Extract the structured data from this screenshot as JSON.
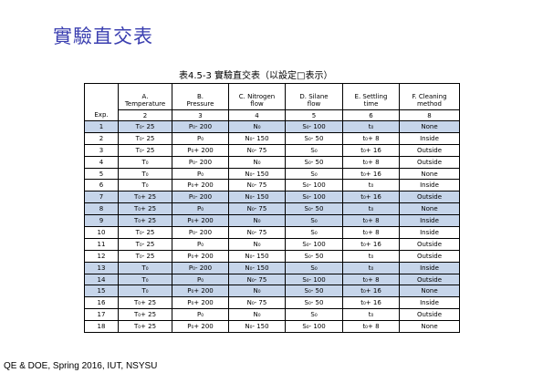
{
  "slide_title": "實驗直交表",
  "table_caption": "表4.5-3  實驗直交表（以設定□表示）",
  "table": {
    "exp_header": "Exp.",
    "columns": [
      {
        "line1": "A.",
        "line2": "Temperature",
        "level": "2"
      },
      {
        "line1": "B.",
        "line2": "Pressure",
        "level": "3"
      },
      {
        "line1": "C. Nitrogen",
        "line2": "flow",
        "level": "4"
      },
      {
        "line1": "D. Silane",
        "line2": "flow",
        "level": "5"
      },
      {
        "line1": "E. Settling",
        "line2": "time",
        "level": "6"
      },
      {
        "line1": "F. Cleaning",
        "line2": "method",
        "level": "8"
      }
    ],
    "rows": [
      {
        "exp": "1",
        "a": "T₀- 25",
        "b": "P₀- 200",
        "c": "N₀",
        "d": "S₀- 100",
        "e": "t₀",
        "f": "None",
        "shaded": true
      },
      {
        "exp": "2",
        "a": "T₀- 25",
        "b": "P₀",
        "c": "N₀- 150",
        "d": "S₀- 50",
        "e": "t₀+ 8",
        "f": "Inside",
        "shaded": false
      },
      {
        "exp": "3",
        "a": "T₀- 25",
        "b": "P₀+ 200",
        "c": "N₀- 75",
        "d": "S₀",
        "e": "t₀+ 16",
        "f": "Outside",
        "shaded": false
      },
      {
        "exp": "4",
        "a": "T₀",
        "b": "P₀- 200",
        "c": "N₀",
        "d": "S₀- 50",
        "e": "t₀+ 8",
        "f": "Outside",
        "shaded": false
      },
      {
        "exp": "5",
        "a": "T₀",
        "b": "P₀",
        "c": "N₀- 150",
        "d": "S₀",
        "e": "t₀+ 16",
        "f": "None",
        "shaded": false
      },
      {
        "exp": "6",
        "a": "T₀",
        "b": "P₀+ 200",
        "c": "N₀- 75",
        "d": "S₀- 100",
        "e": "t₀",
        "f": "Inside",
        "shaded": false
      },
      {
        "exp": "7",
        "a": "T₀+ 25",
        "b": "P₀- 200",
        "c": "N₀- 150",
        "d": "S₀- 100",
        "e": "t₀+ 16",
        "f": "Outside",
        "shaded": true
      },
      {
        "exp": "8",
        "a": "T₀+ 25",
        "b": "P₀",
        "c": "N₀- 75",
        "d": "S₀- 50",
        "e": "t₀",
        "f": "None",
        "shaded": true
      },
      {
        "exp": "9",
        "a": "T₀+ 25",
        "b": "P₀+ 200",
        "c": "N₀",
        "d": "S₀",
        "e": "t₀+ 8",
        "f": "Inside",
        "shaded": true
      },
      {
        "exp": "10",
        "a": "T₀- 25",
        "b": "P₀- 200",
        "c": "N₀- 75",
        "d": "S₀",
        "e": "t₀+ 8",
        "f": "Inside",
        "shaded": false
      },
      {
        "exp": "11",
        "a": "T₀- 25",
        "b": "P₀",
        "c": "N₀",
        "d": "S₀- 100",
        "e": "t₀+ 16",
        "f": "Outside",
        "shaded": false
      },
      {
        "exp": "12",
        "a": "T₀- 25",
        "b": "P₀+ 200",
        "c": "N₀- 150",
        "d": "S₀- 50",
        "e": "t₀",
        "f": "Outside",
        "shaded": false
      },
      {
        "exp": "13",
        "a": "T₀",
        "b": "P₀- 200",
        "c": "N₀- 150",
        "d": "S₀",
        "e": "t₀",
        "f": "Inside",
        "shaded": true
      },
      {
        "exp": "14",
        "a": "T₀",
        "b": "P₀",
        "c": "N₀- 75",
        "d": "S₀- 100",
        "e": "t₀+ 8",
        "f": "Outside",
        "shaded": true
      },
      {
        "exp": "15",
        "a": "T₀",
        "b": "P₀+ 200",
        "c": "N₀",
        "d": "S₀- 50",
        "e": "t₀+ 16",
        "f": "None",
        "shaded": true
      },
      {
        "exp": "16",
        "a": "T₀+ 25",
        "b": "P₀+ 200",
        "c": "N₀- 75",
        "d": "S₀- 50",
        "e": "t₀+ 16",
        "f": "Inside",
        "shaded": false
      },
      {
        "exp": "17",
        "a": "T₀+ 25",
        "b": "P₀",
        "c": "N₀",
        "d": "S₀",
        "e": "t₀",
        "f": "Outside",
        "shaded": false
      },
      {
        "exp": "18",
        "a": "T₀+ 25",
        "b": "P₀+ 200",
        "c": "N₀- 150",
        "d": "S₀- 100",
        "e": "t₀+ 8",
        "f": "None",
        "shaded": false
      }
    ]
  },
  "footer": "QE & DOE, Spring 2016, IUT, NSYSU",
  "colors": {
    "title": "#3b3fb0",
    "shaded_row": "#c6d5ea",
    "text": "#000000"
  }
}
